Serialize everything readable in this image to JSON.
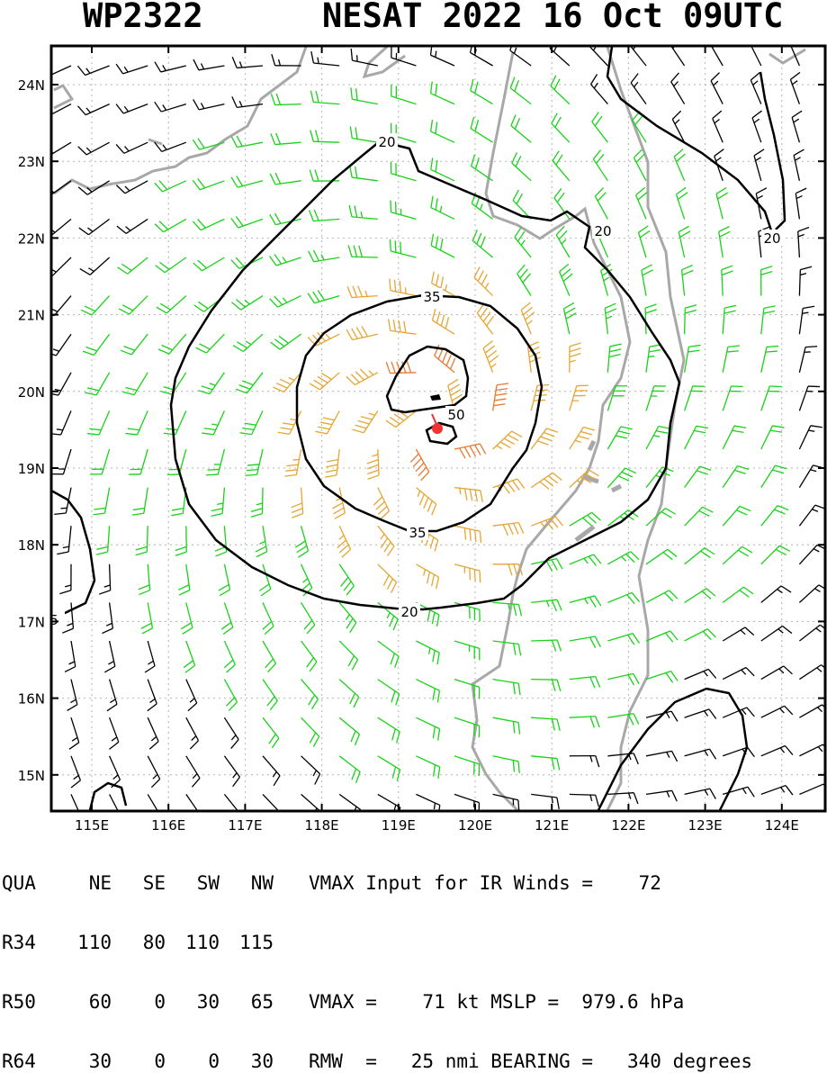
{
  "header": {
    "storm_id": "WP2322",
    "storm_title": "NESAT 2022 16 Oct 09UTC"
  },
  "map": {
    "lat_labels": [
      "24N",
      "23N",
      "22N",
      "21N",
      "20N",
      "19N",
      "18N",
      "17N",
      "16N",
      "15N"
    ],
    "lon_labels": [
      "115E",
      "116E",
      "117E",
      "118E",
      "119E",
      "120E",
      "121E",
      "122E",
      "123E",
      "124E"
    ],
    "contour_labels": [
      {
        "text": "20"
      },
      {
        "text": "20"
      },
      {
        "text": "20"
      },
      {
        "text": "20"
      },
      {
        "text": "35"
      },
      {
        "text": "35"
      },
      {
        "text": "50"
      },
      {
        "text": "5"
      }
    ],
    "colors": {
      "frame": "#000000",
      "coastline": "#a8a8a8",
      "barb_weak": "#000000",
      "barb_34kt": "#19d219",
      "barb_50kt": "#e6a532",
      "barb_64kt": "#e67a32",
      "center_marker": "#f03232",
      "contour": "#000000",
      "grid": "#b4b4b4"
    },
    "grid": "dotted"
  },
  "table": {
    "header": [
      "QUA",
      "NE",
      "SE",
      "SW",
      "NW"
    ],
    "rows": [
      {
        "label": "R34",
        "values": [
          "110",
          "80",
          "110",
          "115"
        ]
      },
      {
        "label": "R50",
        "values": [
          "60",
          "0",
          "30",
          "65"
        ]
      },
      {
        "label": "R64",
        "values": [
          "30",
          "0",
          "0",
          "30"
        ]
      }
    ]
  },
  "info": {
    "line1": "VMAX Input for IR Winds =    72",
    "line2": "",
    "line3": "VMAX =    71 kt MSLP =  979.6 hPa",
    "line4": "RMW  =   25 nmi BEARING =   340 degrees"
  }
}
